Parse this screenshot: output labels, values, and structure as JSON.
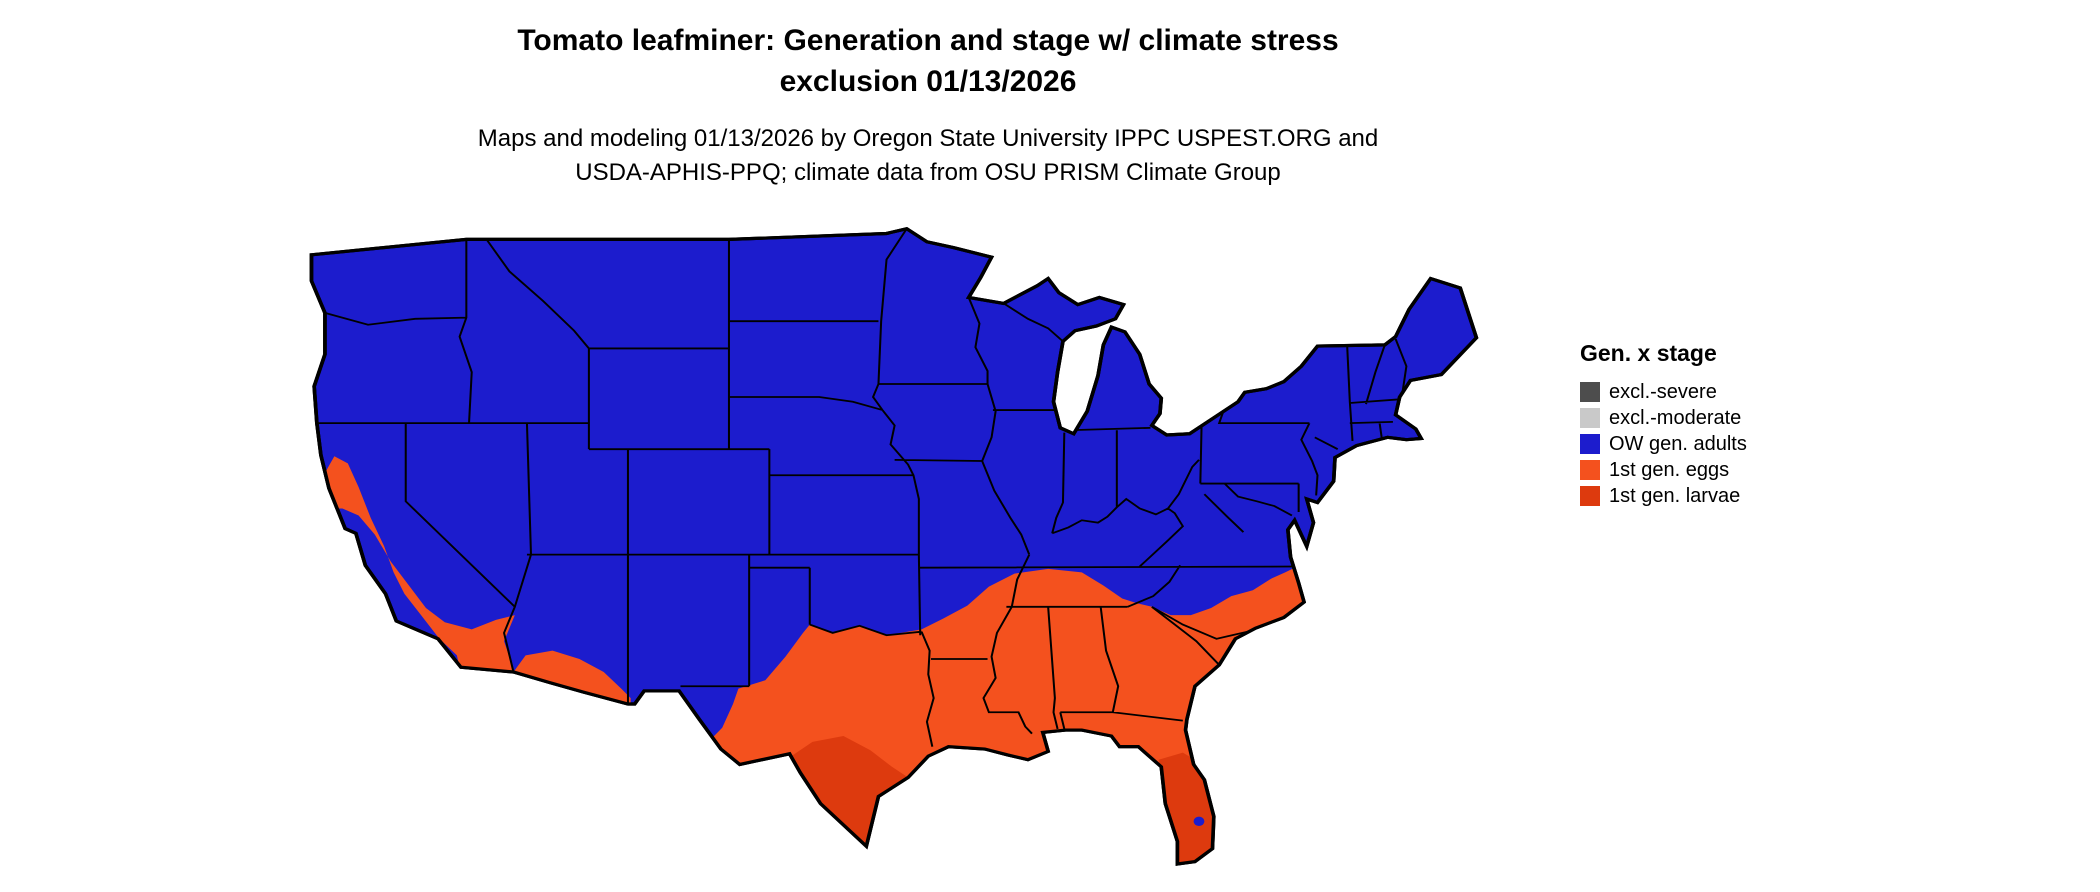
{
  "header": {
    "title_line1": "Tomato leafminer: Generation and stage w/ climate stress",
    "title_line2": "exclusion 01/13/2026",
    "subtitle_line1": "Maps and modeling 01/13/2026 by Oregon State University IPPC USPEST.ORG and",
    "subtitle_line2": "USDA-APHIS-PPQ; climate data from OSU PRISM Climate Group"
  },
  "legend": {
    "title": "Gen. x stage",
    "items": [
      {
        "label": "excl.-severe",
        "color": "#4d4d4d",
        "key": "severe"
      },
      {
        "label": "excl.-moderate",
        "color": "#c9c9c9",
        "key": "moderate"
      },
      {
        "label": "OW gen. adults",
        "color": "#1c1ccd",
        "key": "adults"
      },
      {
        "label": "1st gen. eggs",
        "color": "#f4511e",
        "key": "eggs"
      },
      {
        "label": "1st gen. larvae",
        "color": "#dd3a0e",
        "key": "larvae"
      }
    ]
  },
  "map": {
    "type": "choropleth-us-contiguous",
    "areas": [
      {
        "name": "northern-and-central-us",
        "category": "OW gen. adults"
      },
      {
        "name": "southern-band-texas-to-carolinas",
        "category": "1st gen. eggs"
      },
      {
        "name": "southern-california-central-valley",
        "category": "1st gen. eggs"
      },
      {
        "name": "southern-arizona-border-strip",
        "category": "1st gen. eggs"
      },
      {
        "name": "south-texas",
        "category": "1st gen. larvae"
      },
      {
        "name": "florida-peninsula",
        "category": "1st gen. larvae"
      }
    ]
  }
}
